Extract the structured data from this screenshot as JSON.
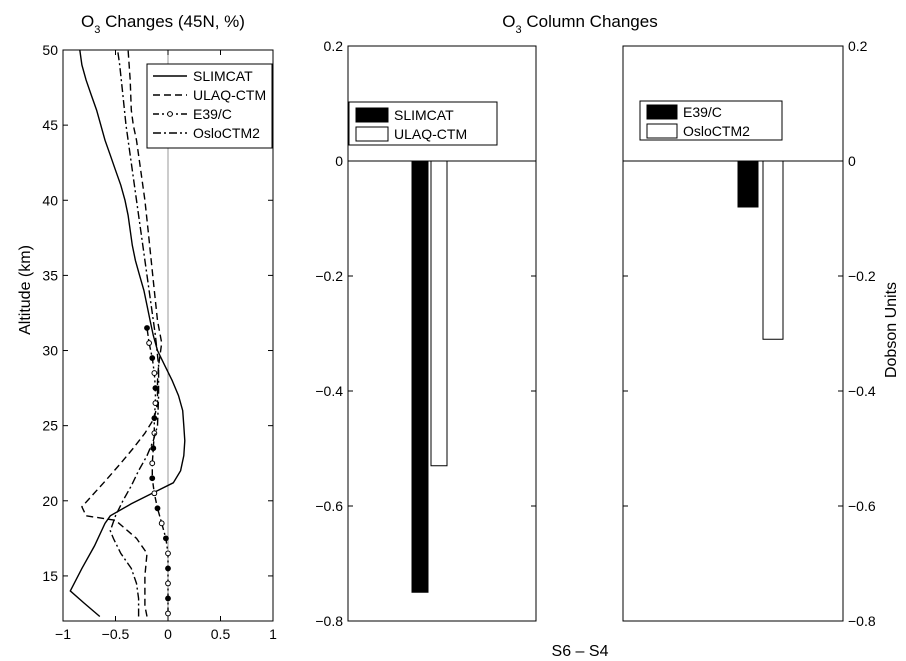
{
  "figure": {
    "left_title_main": "O",
    "left_title_sub": "3",
    "left_title_rest": " Changes (45N, %)",
    "right_title_main": "O",
    "right_title_sub": "3",
    "right_title_rest": " Column Changes",
    "bottom_label": "S6 – S4"
  },
  "chart_data": [
    {
      "type": "line",
      "xlabel": "",
      "ylabel": "Altitude  (km)",
      "xlim": [
        -1,
        1
      ],
      "ylim": [
        12,
        50
      ],
      "xticks": [
        -1,
        -0.5,
        0,
        0.5,
        1
      ],
      "xtick_labels": [
        "−1",
        "−0.5",
        "0",
        "0.5",
        "1"
      ],
      "yticks": [
        15,
        20,
        25,
        30,
        35,
        40,
        45,
        50
      ],
      "ytick_labels": [
        "15",
        "20",
        "25",
        "30",
        "35",
        "40",
        "45",
        "50"
      ],
      "zero_line": true,
      "legend_position": "top-right",
      "series": [
        {
          "name": "SLIMCAT",
          "style": "solid",
          "points": [
            [
              -0.65,
              12.3
            ],
            [
              -0.8,
              13.2
            ],
            [
              -0.93,
              14
            ],
            [
              -0.82,
              15.5
            ],
            [
              -0.7,
              17
            ],
            [
              -0.6,
              18.5
            ],
            [
              -0.55,
              19
            ],
            [
              -0.35,
              19.8
            ],
            [
              -0.15,
              20.5
            ],
            [
              0.05,
              21.2
            ],
            [
              0.12,
              22
            ],
            [
              0.15,
              23
            ],
            [
              0.16,
              24
            ],
            [
              0.15,
              25
            ],
            [
              0.14,
              26
            ],
            [
              0.1,
              27
            ],
            [
              0.04,
              28
            ],
            [
              -0.03,
              29
            ],
            [
              -0.1,
              30
            ],
            [
              -0.14,
              31
            ],
            [
              -0.17,
              32
            ],
            [
              -0.2,
              33
            ],
            [
              -0.23,
              34
            ],
            [
              -0.27,
              35
            ],
            [
              -0.31,
              36
            ],
            [
              -0.34,
              37
            ],
            [
              -0.36,
              38
            ],
            [
              -0.38,
              39
            ],
            [
              -0.41,
              40
            ],
            [
              -0.45,
              41
            ],
            [
              -0.5,
              42
            ],
            [
              -0.55,
              43
            ],
            [
              -0.6,
              44
            ],
            [
              -0.64,
              45
            ],
            [
              -0.68,
              46
            ],
            [
              -0.73,
              47
            ],
            [
              -0.78,
              48
            ],
            [
              -0.82,
              49
            ],
            [
              -0.84,
              50
            ]
          ]
        },
        {
          "name": "ULAQ-CTM",
          "style": "dashed",
          "points": [
            [
              -0.2,
              12.3
            ],
            [
              -0.22,
              13
            ],
            [
              -0.22,
              14
            ],
            [
              -0.22,
              15
            ],
            [
              -0.2,
              16.5
            ],
            [
              -0.3,
              17.5
            ],
            [
              -0.5,
              18.7
            ],
            [
              -0.78,
              19
            ],
            [
              -0.82,
              19.6
            ],
            [
              -0.6,
              21.3
            ],
            [
              -0.45,
              22.5
            ],
            [
              -0.33,
              23.5
            ],
            [
              -0.22,
              24.5
            ],
            [
              -0.13,
              25.5
            ],
            [
              -0.1,
              26.5
            ],
            [
              -0.1,
              28
            ],
            [
              -0.09,
              29
            ],
            [
              -0.06,
              30.5
            ],
            [
              -0.1,
              32
            ],
            [
              -0.13,
              34
            ],
            [
              -0.16,
              36
            ],
            [
              -0.19,
              38
            ],
            [
              -0.22,
              40
            ],
            [
              -0.26,
              42
            ],
            [
              -0.3,
              44
            ],
            [
              -0.33,
              45
            ],
            [
              -0.35,
              46
            ],
            [
              -0.36,
              48
            ],
            [
              -0.38,
              50
            ]
          ]
        },
        {
          "name": "E39/C",
          "style": "dash-dot-circles",
          "points": [
            [
              0,
              12.5
            ],
            [
              0,
              13.5
            ],
            [
              0,
              14.5
            ],
            [
              0,
              15.5
            ],
            [
              0,
              16.5
            ],
            [
              -0.02,
              17.5
            ],
            [
              -0.06,
              18.5
            ],
            [
              -0.1,
              19.5
            ],
            [
              -0.13,
              20.5
            ],
            [
              -0.15,
              21.5
            ],
            [
              -0.15,
              22.5
            ],
            [
              -0.14,
              23.5
            ],
            [
              -0.13,
              24.5
            ],
            [
              -0.13,
              25.5
            ],
            [
              -0.12,
              26.5
            ],
            [
              -0.12,
              27.5
            ],
            [
              -0.13,
              28.5
            ],
            [
              -0.15,
              29.5
            ],
            [
              -0.18,
              30.5
            ],
            [
              -0.2,
              31.5
            ]
          ]
        },
        {
          "name": "OsloCTM2",
          "style": "dash-dot",
          "points": [
            [
              -0.28,
              12.3
            ],
            [
              -0.28,
              13.5
            ],
            [
              -0.3,
              14.5
            ],
            [
              -0.35,
              15.5
            ],
            [
              -0.45,
              16.5
            ],
            [
              -0.52,
              17.5
            ],
            [
              -0.55,
              18
            ],
            [
              -0.5,
              19
            ],
            [
              -0.43,
              20
            ],
            [
              -0.35,
              21
            ],
            [
              -0.28,
              22
            ],
            [
              -0.2,
              23
            ],
            [
              -0.14,
              24
            ],
            [
              -0.1,
              25
            ],
            [
              -0.09,
              27
            ],
            [
              -0.09,
              29
            ],
            [
              -0.12,
              31
            ],
            [
              -0.16,
              33
            ],
            [
              -0.2,
              35
            ],
            [
              -0.24,
              37
            ],
            [
              -0.28,
              39
            ],
            [
              -0.32,
              41
            ],
            [
              -0.36,
              43
            ],
            [
              -0.4,
              45
            ],
            [
              -0.43,
              47
            ],
            [
              -0.46,
              49
            ],
            [
              -0.48,
              50
            ]
          ]
        }
      ]
    },
    {
      "type": "bar",
      "ylim": [
        -0.8,
        0.2
      ],
      "yticks": [
        -0.8,
        -0.6,
        -0.4,
        -0.2,
        0,
        0.2
      ],
      "ytick_labels": [
        "−0.8",
        "−0.6",
        "−0.4",
        "−0.2",
        "0",
        "0.2"
      ],
      "legend_position": "top-left",
      "series": [
        {
          "name": "SLIMCAT",
          "value": -0.75,
          "fill": "#000000"
        },
        {
          "name": "ULAQ-CTM",
          "value": -0.53,
          "fill": "#ffffff"
        }
      ]
    },
    {
      "type": "bar",
      "ylabel": "Dobson Units",
      "ylim": [
        -0.8,
        0.2
      ],
      "yticks": [
        -0.8,
        -0.6,
        -0.4,
        -0.2,
        0,
        0.2
      ],
      "ytick_labels": [
        "−0.8",
        "−0.6",
        "−0.4",
        "−0.2",
        "0",
        "0.2"
      ],
      "legend_position": "top-left",
      "series": [
        {
          "name": "E39/C",
          "value": -0.08,
          "fill": "#000000"
        },
        {
          "name": "OsloCTM2",
          "value": -0.31,
          "fill": "#ffffff"
        }
      ]
    }
  ]
}
